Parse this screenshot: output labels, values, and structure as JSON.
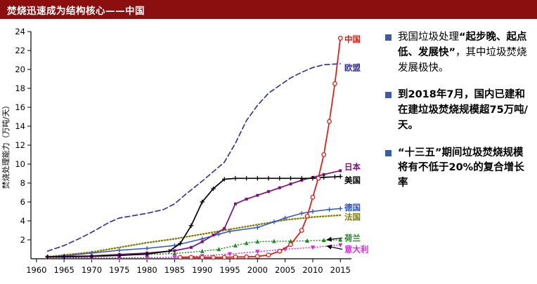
{
  "header": {
    "title": "焚烧迅速成为结构核心——中国"
  },
  "colors": {
    "header_bg": "#8b0f0f",
    "bullet": "#3b5ba5"
  },
  "panel": {
    "bullets": [
      {
        "pre": "我国垃圾处理",
        "bold": "“起步晚、起点低、发展快”",
        "post": "，其中垃圾焚烧发展极快。"
      },
      {
        "pre": "",
        "bold": "到2018年7月，国内已建和在建垃圾焚烧规模超75万吨/天。",
        "post": ""
      },
      {
        "pre": "",
        "bold": "“十三五”期间垃圾焚烧规模将有不低于20%的复合增长率",
        "post": ""
      }
    ]
  },
  "chart_data": {
    "type": "line",
    "title": "",
    "xlabel": "",
    "ylabel": "焚烧处理能力（万吨/天）",
    "xlim": [
      1959,
      2017
    ],
    "ylim": [
      0,
      24
    ],
    "x_ticks": [
      1960,
      1965,
      1970,
      1975,
      1980,
      1985,
      1990,
      1995,
      2000,
      2005,
      2010,
      2015
    ],
    "y_ticks": [
      2,
      4,
      6,
      8,
      10,
      12,
      14,
      16,
      18,
      20,
      22,
      24
    ],
    "grid": false,
    "legend_position": "line-end-labels",
    "series": [
      {
        "name": "欧盟",
        "label": "欧盟",
        "color": "#2b2ba0",
        "marker": "none",
        "dash": "7,4",
        "width": 1.6,
        "label_y": 20.2,
        "points": [
          [
            1962,
            0.8
          ],
          [
            1965,
            1.4
          ],
          [
            1968,
            2.2
          ],
          [
            1970,
            2.8
          ],
          [
            1973,
            3.8
          ],
          [
            1975,
            4.3
          ],
          [
            1978,
            4.6
          ],
          [
            1980,
            4.8
          ],
          [
            1983,
            5.2
          ],
          [
            1985,
            5.8
          ],
          [
            1987,
            6.8
          ],
          [
            1990,
            8.2
          ],
          [
            1992,
            9.2
          ],
          [
            1994,
            10.2
          ],
          [
            1996,
            12.2
          ],
          [
            1998,
            14.6
          ],
          [
            2000,
            16.2
          ],
          [
            2002,
            17.5
          ],
          [
            2004,
            18.3
          ],
          [
            2006,
            19.1
          ],
          [
            2008,
            19.7
          ],
          [
            2010,
            20.2
          ],
          [
            2012,
            20.5
          ],
          [
            2015,
            20.6
          ]
        ]
      },
      {
        "name": "法国",
        "label": "法国",
        "color": "#7e7e00",
        "marker": "none",
        "dash": "1,3",
        "width": 2.4,
        "label_y": 4.4,
        "points": [
          [
            1962,
            0.2
          ],
          [
            1965,
            0.4
          ],
          [
            1970,
            0.7
          ],
          [
            1975,
            1.2
          ],
          [
            1980,
            1.7
          ],
          [
            1985,
            2.1
          ],
          [
            1990,
            2.6
          ],
          [
            1995,
            3.1
          ],
          [
            2000,
            3.6
          ],
          [
            2005,
            4.1
          ],
          [
            2010,
            4.4
          ],
          [
            2015,
            4.6
          ]
        ]
      },
      {
        "name": "德国",
        "label": "德国",
        "color": "#2f55c4",
        "marker": "plus",
        "dash": "",
        "width": 1.5,
        "label_y": 5.4,
        "points": [
          [
            1962,
            0.2
          ],
          [
            1965,
            0.3
          ],
          [
            1970,
            0.6
          ],
          [
            1975,
            0.9
          ],
          [
            1980,
            1.1
          ],
          [
            1985,
            1.4
          ],
          [
            1990,
            2.1
          ],
          [
            1993,
            2.6
          ],
          [
            1995,
            2.9
          ],
          [
            2000,
            3.3
          ],
          [
            2003,
            3.9
          ],
          [
            2005,
            4.3
          ],
          [
            2008,
            4.8
          ],
          [
            2010,
            5.0
          ],
          [
            2013,
            5.2
          ],
          [
            2015,
            5.3
          ]
        ]
      },
      {
        "name": "荷兰",
        "label": "荷兰",
        "color": "#1e8a1e",
        "marker": "tri-up",
        "dash": "1,3",
        "width": 1.4,
        "label_y": 2.2,
        "arrow_to": [
          2012.5,
          2.0
        ],
        "points": [
          [
            1962,
            0.15
          ],
          [
            1970,
            0.25
          ],
          [
            1975,
            0.35
          ],
          [
            1980,
            0.45
          ],
          [
            1985,
            0.55
          ],
          [
            1990,
            0.8
          ],
          [
            1993,
            1.0
          ],
          [
            1996,
            1.4
          ],
          [
            1998,
            1.65
          ],
          [
            2000,
            1.8
          ],
          [
            2003,
            1.85
          ],
          [
            2006,
            1.85
          ],
          [
            2009,
            1.9
          ],
          [
            2012,
            1.95
          ],
          [
            2015,
            2.0
          ]
        ]
      },
      {
        "name": "意大利",
        "label": "意大利",
        "color": "#d62ad6",
        "marker": "tri-down",
        "dash": "1,3",
        "width": 1.4,
        "label_y": 1.0,
        "arrow_to": [
          2012.5,
          1.35
        ],
        "points": [
          [
            1962,
            0.1
          ],
          [
            1970,
            0.1
          ],
          [
            1975,
            0.1
          ],
          [
            1980,
            0.12
          ],
          [
            1985,
            0.15
          ],
          [
            1990,
            0.3
          ],
          [
            1995,
            0.5
          ],
          [
            2000,
            0.75
          ],
          [
            2005,
            1.0
          ],
          [
            2010,
            1.2
          ],
          [
            2015,
            1.45
          ]
        ]
      },
      {
        "name": "日本",
        "label": "日本",
        "color": "#7d0f7d",
        "marker": "square",
        "dash": "",
        "width": 1.7,
        "label_y": 9.7,
        "points": [
          [
            1962,
            0.2
          ],
          [
            1965,
            0.25
          ],
          [
            1970,
            0.3
          ],
          [
            1975,
            0.45
          ],
          [
            1980,
            0.6
          ],
          [
            1985,
            0.85
          ],
          [
            1988,
            1.2
          ],
          [
            1990,
            1.8
          ],
          [
            1992,
            2.5
          ],
          [
            1994,
            3.2
          ],
          [
            1996,
            5.8
          ],
          [
            1998,
            6.3
          ],
          [
            2000,
            6.7
          ],
          [
            2002,
            7.1
          ],
          [
            2004,
            7.5
          ],
          [
            2006,
            7.9
          ],
          [
            2008,
            8.3
          ],
          [
            2010,
            8.6
          ],
          [
            2012,
            8.9
          ],
          [
            2015,
            9.3
          ]
        ]
      },
      {
        "name": "美国",
        "label": "美国",
        "color": "#000000",
        "marker": "plus",
        "dash": "",
        "width": 1.7,
        "label_y": 8.3,
        "points": [
          [
            1962,
            0.2
          ],
          [
            1965,
            0.2
          ],
          [
            1970,
            0.25
          ],
          [
            1975,
            0.35
          ],
          [
            1980,
            0.5
          ],
          [
            1984,
            0.8
          ],
          [
            1986,
            1.6
          ],
          [
            1988,
            3.5
          ],
          [
            1990,
            6.0
          ],
          [
            1992,
            7.4
          ],
          [
            1994,
            8.4
          ],
          [
            1996,
            8.5
          ],
          [
            1998,
            8.5
          ],
          [
            2000,
            8.5
          ],
          [
            2002,
            8.5
          ],
          [
            2004,
            8.5
          ],
          [
            2006,
            8.5
          ],
          [
            2008,
            8.5
          ],
          [
            2010,
            8.5
          ],
          [
            2012,
            8.6
          ],
          [
            2014,
            8.65
          ],
          [
            2015,
            8.7
          ]
        ]
      },
      {
        "name": "中国",
        "label": "中国",
        "color": "#e8130c",
        "marker": "circle",
        "dash": "",
        "width": 1.7,
        "label_y": 23.2,
        "points": [
          [
            1986,
            0.15
          ],
          [
            1988,
            0.15
          ],
          [
            1990,
            0.15
          ],
          [
            1992,
            0.15
          ],
          [
            1994,
            0.15
          ],
          [
            1996,
            0.2
          ],
          [
            1998,
            0.2
          ],
          [
            2000,
            0.25
          ],
          [
            2002,
            0.4
          ],
          [
            2004,
            0.8
          ],
          [
            2006,
            1.5
          ],
          [
            2008,
            3.0
          ],
          [
            2009,
            4.5
          ],
          [
            2010,
            6.5
          ],
          [
            2011,
            8.5
          ],
          [
            2012,
            11.0
          ],
          [
            2013,
            14.5
          ],
          [
            2014,
            18.5
          ],
          [
            2015,
            23.3
          ]
        ]
      }
    ]
  }
}
